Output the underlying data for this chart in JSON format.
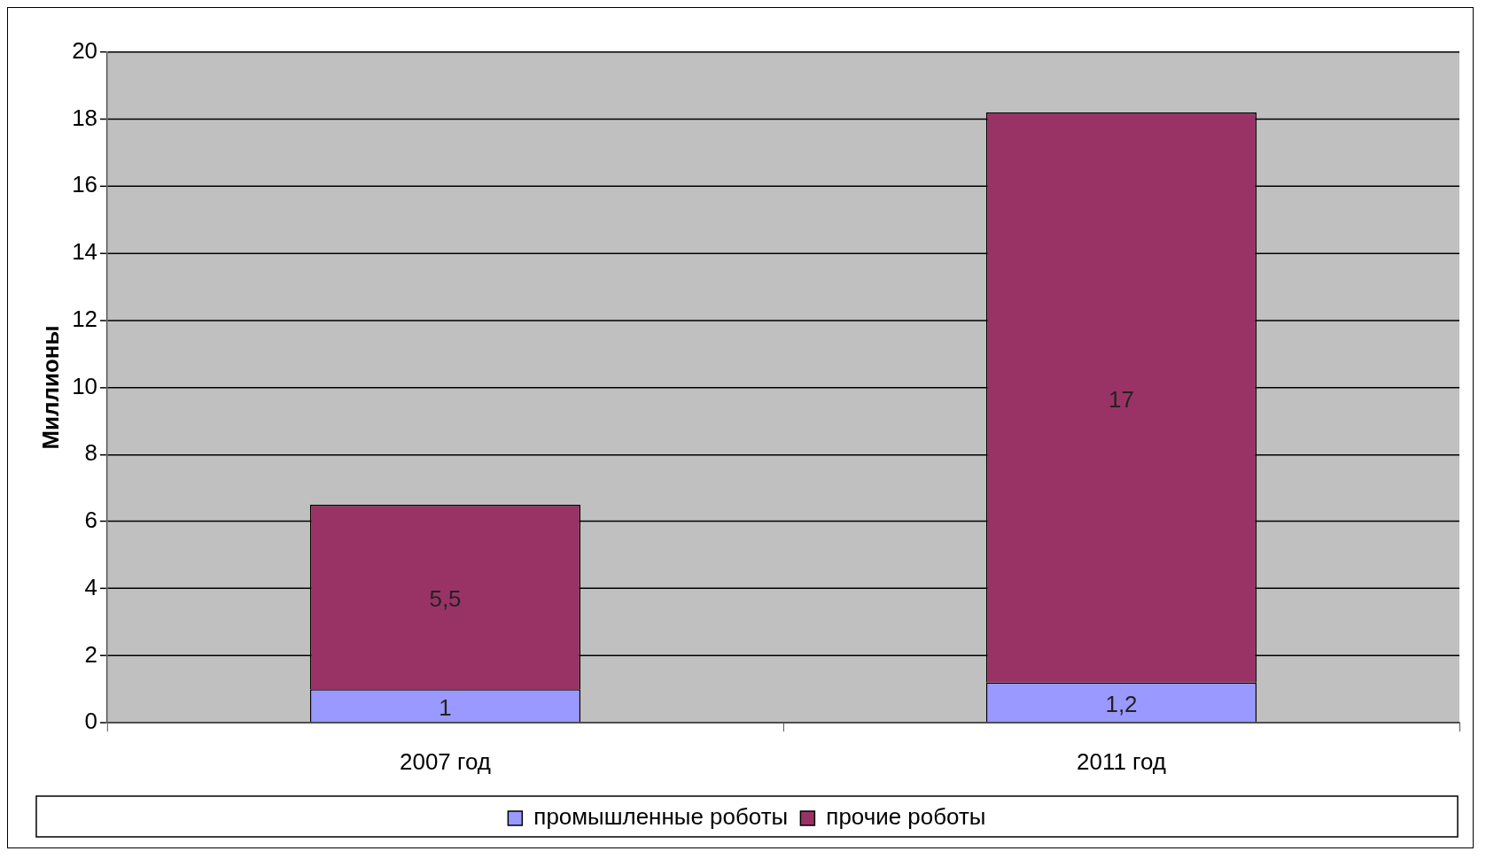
{
  "chart_data": {
    "type": "bar",
    "ylabel": "Миллионы",
    "categories": [
      "2007 год",
      "2011 год"
    ],
    "series": [
      {
        "name": "промышленные роботы",
        "color": "#9999ff",
        "values": [
          1,
          1.2
        ],
        "value_labels": [
          "1",
          "1,2"
        ]
      },
      {
        "name": "прочие роботы",
        "color": "#993366",
        "values": [
          5.5,
          17
        ],
        "value_labels": [
          "5,5",
          "17"
        ]
      }
    ],
    "stacked": true,
    "ylim": [
      0,
      20
    ],
    "yticks": [
      0,
      2,
      4,
      6,
      8,
      10,
      12,
      14,
      16,
      18,
      20
    ],
    "grid": "y",
    "legend": "bottom"
  }
}
